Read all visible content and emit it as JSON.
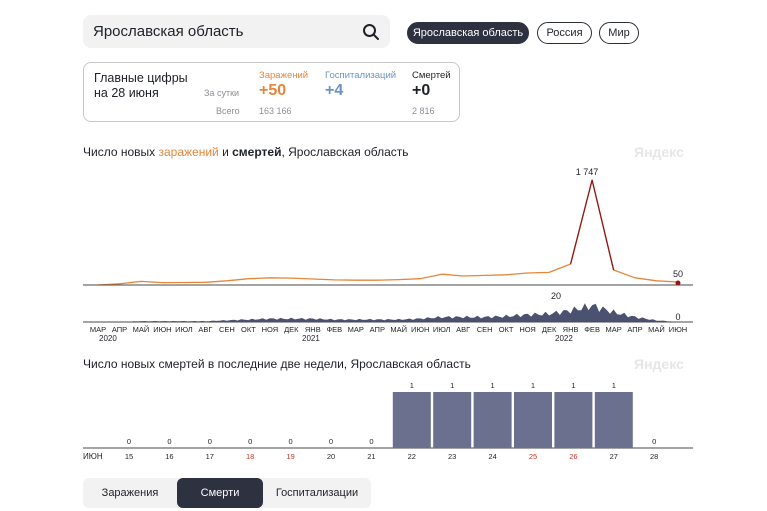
{
  "search": {
    "value": "Ярославская область"
  },
  "region_pills": [
    {
      "label": "Ярославская область",
      "active": true
    },
    {
      "label": "Россия",
      "active": false
    },
    {
      "label": "Мир",
      "active": false
    }
  ],
  "summary": {
    "title_line1": "Главные цифры",
    "title_line2": "на 28 июня",
    "per_day_label": "За сутки",
    "total_label": "Всего",
    "infections": {
      "label": "Заражений",
      "today": "+50",
      "total": "163 166",
      "color": "#e5863b"
    },
    "hospitalizations": {
      "label": "Госпитализаций",
      "today": "+4",
      "total": "",
      "color": "#6a95c2"
    },
    "deaths": {
      "label": "Смертей",
      "today": "+0",
      "total": "2 816",
      "color": "#1e2128"
    }
  },
  "chart1": {
    "title_part1": "Число новых ",
    "title_part2": "заражений",
    "title_part3": " и ",
    "title_part4": "смертей",
    "title_part5": ", Ярославская область",
    "watermark": "Яндекс",
    "peak_label": "1 747",
    "last_label": "50",
    "deaths_peak_label": "20",
    "deaths_last_label": "0",
    "year_labels": [
      "2020",
      "2021",
      "2022"
    ]
  },
  "chart2": {
    "title": "Число новых смертей в последние две недели, Ярославская область",
    "watermark": "Яндекс",
    "month_label": "ИЮН"
  },
  "chart_data": [
    {
      "type": "area",
      "title": "Число новых заражений и смертей, Ярославская область",
      "x": [
        "МАР",
        "АПР",
        "МАЙ",
        "ИЮН",
        "ИЮЛ",
        "АВГ",
        "СЕН",
        "ОКТ",
        "НОЯ",
        "ДЕК",
        "ЯНВ",
        "ФЕВ",
        "МАР",
        "АПР",
        "МАЙ",
        "ИЮН",
        "ИЮЛ",
        "АВГ",
        "СЕН",
        "ОКТ",
        "НОЯ",
        "ДЕК",
        "ЯНВ",
        "ФЕВ",
        "МАР",
        "АПР",
        "МАЙ",
        "ИЮН"
      ],
      "series": [
        {
          "name": "заражений",
          "color": "#e5863b",
          "values": [
            0,
            20,
            60,
            40,
            42,
            45,
            70,
            105,
            120,
            115,
            100,
            85,
            80,
            80,
            90,
            105,
            180,
            150,
            160,
            170,
            200,
            210,
            350,
            1747,
            250,
            120,
            70,
            50
          ]
        },
        {
          "name": "смертей",
          "color": "#4b5170",
          "values": [
            0,
            0,
            1,
            1,
            1,
            1,
            2,
            3,
            4,
            4,
            4,
            3,
            3,
            3,
            3,
            4,
            6,
            6,
            6,
            7,
            9,
            10,
            14,
            20,
            12,
            6,
            2,
            0
          ]
        }
      ]
    },
    {
      "type": "bar",
      "title": "Число новых смертей в последние две недели, Ярославская область",
      "categories": [
        "15",
        "16",
        "17",
        "18",
        "19",
        "20",
        "21",
        "22",
        "23",
        "24",
        "25",
        "26",
        "27",
        "28"
      ],
      "weekend": [
        false,
        false,
        false,
        true,
        true,
        false,
        false,
        false,
        false,
        false,
        true,
        true,
        false,
        false
      ],
      "values": [
        0,
        0,
        0,
        0,
        0,
        0,
        0,
        1,
        1,
        1,
        1,
        1,
        1,
        0
      ],
      "bar_color": "#6b708f",
      "weekend_color": "#c0392b"
    }
  ],
  "tabs": [
    {
      "label": "Заражения",
      "active": false
    },
    {
      "label": "Смерти",
      "active": true
    },
    {
      "label": "Госпитализации",
      "active": false
    }
  ]
}
